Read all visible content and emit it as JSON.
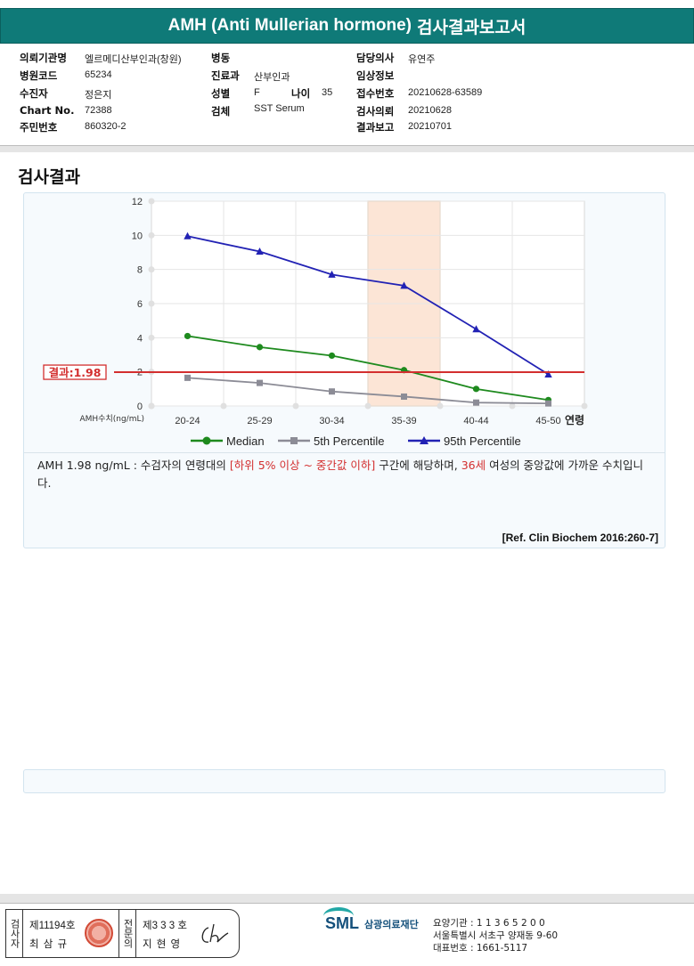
{
  "header": {
    "title_en": "AMH (Anti Mullerian hormone)",
    "title_ko": "검사결과보고서"
  },
  "info": {
    "institution_label": "의뢰기관명",
    "institution": "엘르메디산부인과(창원)",
    "code_label": "병원코드",
    "code": "65234",
    "patient_label": "수진자",
    "patient": "정은지",
    "chart_label": "Chart No.",
    "chart_no": "72388",
    "id_label": "주민번호",
    "id_no": "860320-2",
    "ward_label": "병동",
    "ward": "",
    "dept_label": "진료과",
    "dept": "산부인과",
    "sex_label": "성별",
    "sex": "F",
    "age_label": "나이",
    "age": "35",
    "specimen_label": "검체",
    "specimen": "SST Serum",
    "doctor_label": "담당의사",
    "doctor": "유연주",
    "clinical_label": "임상정보",
    "clinical": "",
    "receipt_label": "접수번호",
    "receipt_no": "20210628-63589",
    "request_label": "검사의뢰",
    "request_date": "20210628",
    "report_label": "결과보고",
    "report_date": "20210701"
  },
  "section_title": "검사결과",
  "chart_data": {
    "type": "line",
    "categories": [
      "20-24",
      "25-29",
      "30-34",
      "35-39",
      "40-44",
      "45-50"
    ],
    "series": [
      {
        "name": "Median",
        "values": [
          4.1,
          3.45,
          2.95,
          2.1,
          1.0,
          0.35
        ],
        "color": "#1e8a1e",
        "marker": "circle"
      },
      {
        "name": "5th Percentile",
        "values": [
          1.65,
          1.35,
          0.85,
          0.55,
          0.2,
          0.15
        ],
        "color": "#8c8c96",
        "marker": "square"
      },
      {
        "name": "95th Percentile",
        "values": [
          9.95,
          9.05,
          7.7,
          7.05,
          4.5,
          1.85
        ],
        "color": "#2222b4",
        "marker": "triangle"
      }
    ],
    "ylim": [
      0,
      12
    ],
    "yticks": [
      0,
      2,
      4,
      6,
      8,
      10,
      12
    ],
    "xlabel": "연령",
    "ylabel": "AMH수치(ng/mL)",
    "result_line": {
      "value": 1.98,
      "label": "결과:1.98",
      "color": "#d32f2f"
    },
    "highlight_category": "35-39",
    "highlight_color": "#f6b48a",
    "legend_position": "bottom",
    "grid": true
  },
  "description": {
    "part1": "AMH  1.98 ng/mL : 수검자의 연령대의 ",
    "red1": "[하위 5% 이상 ~ 중간값 이하]",
    "part2": "  구간에 해당하며, ",
    "red2": "36세",
    "part3": " 여성의 중앙값에 가까운 수치입니다."
  },
  "reference": "[Ref. Clin Biochem 2016:260-7]",
  "footer": {
    "inspector_label": "검사자",
    "inspector_no": "제11194호",
    "inspector_name": "최 삼 규",
    "specialist_label": "전문의",
    "specialist_no": "제3 3 3 호",
    "specialist_name": "지 현 영",
    "logo_mark": "SML",
    "logo_name": "삼광의료재단",
    "org_line1": "요양기관 : 1 1 3 6 5 2 0 0",
    "org_line2": "서울특별시 서초구 양재동 9-60",
    "org_line3": "대표번호 : 1661-5117"
  }
}
